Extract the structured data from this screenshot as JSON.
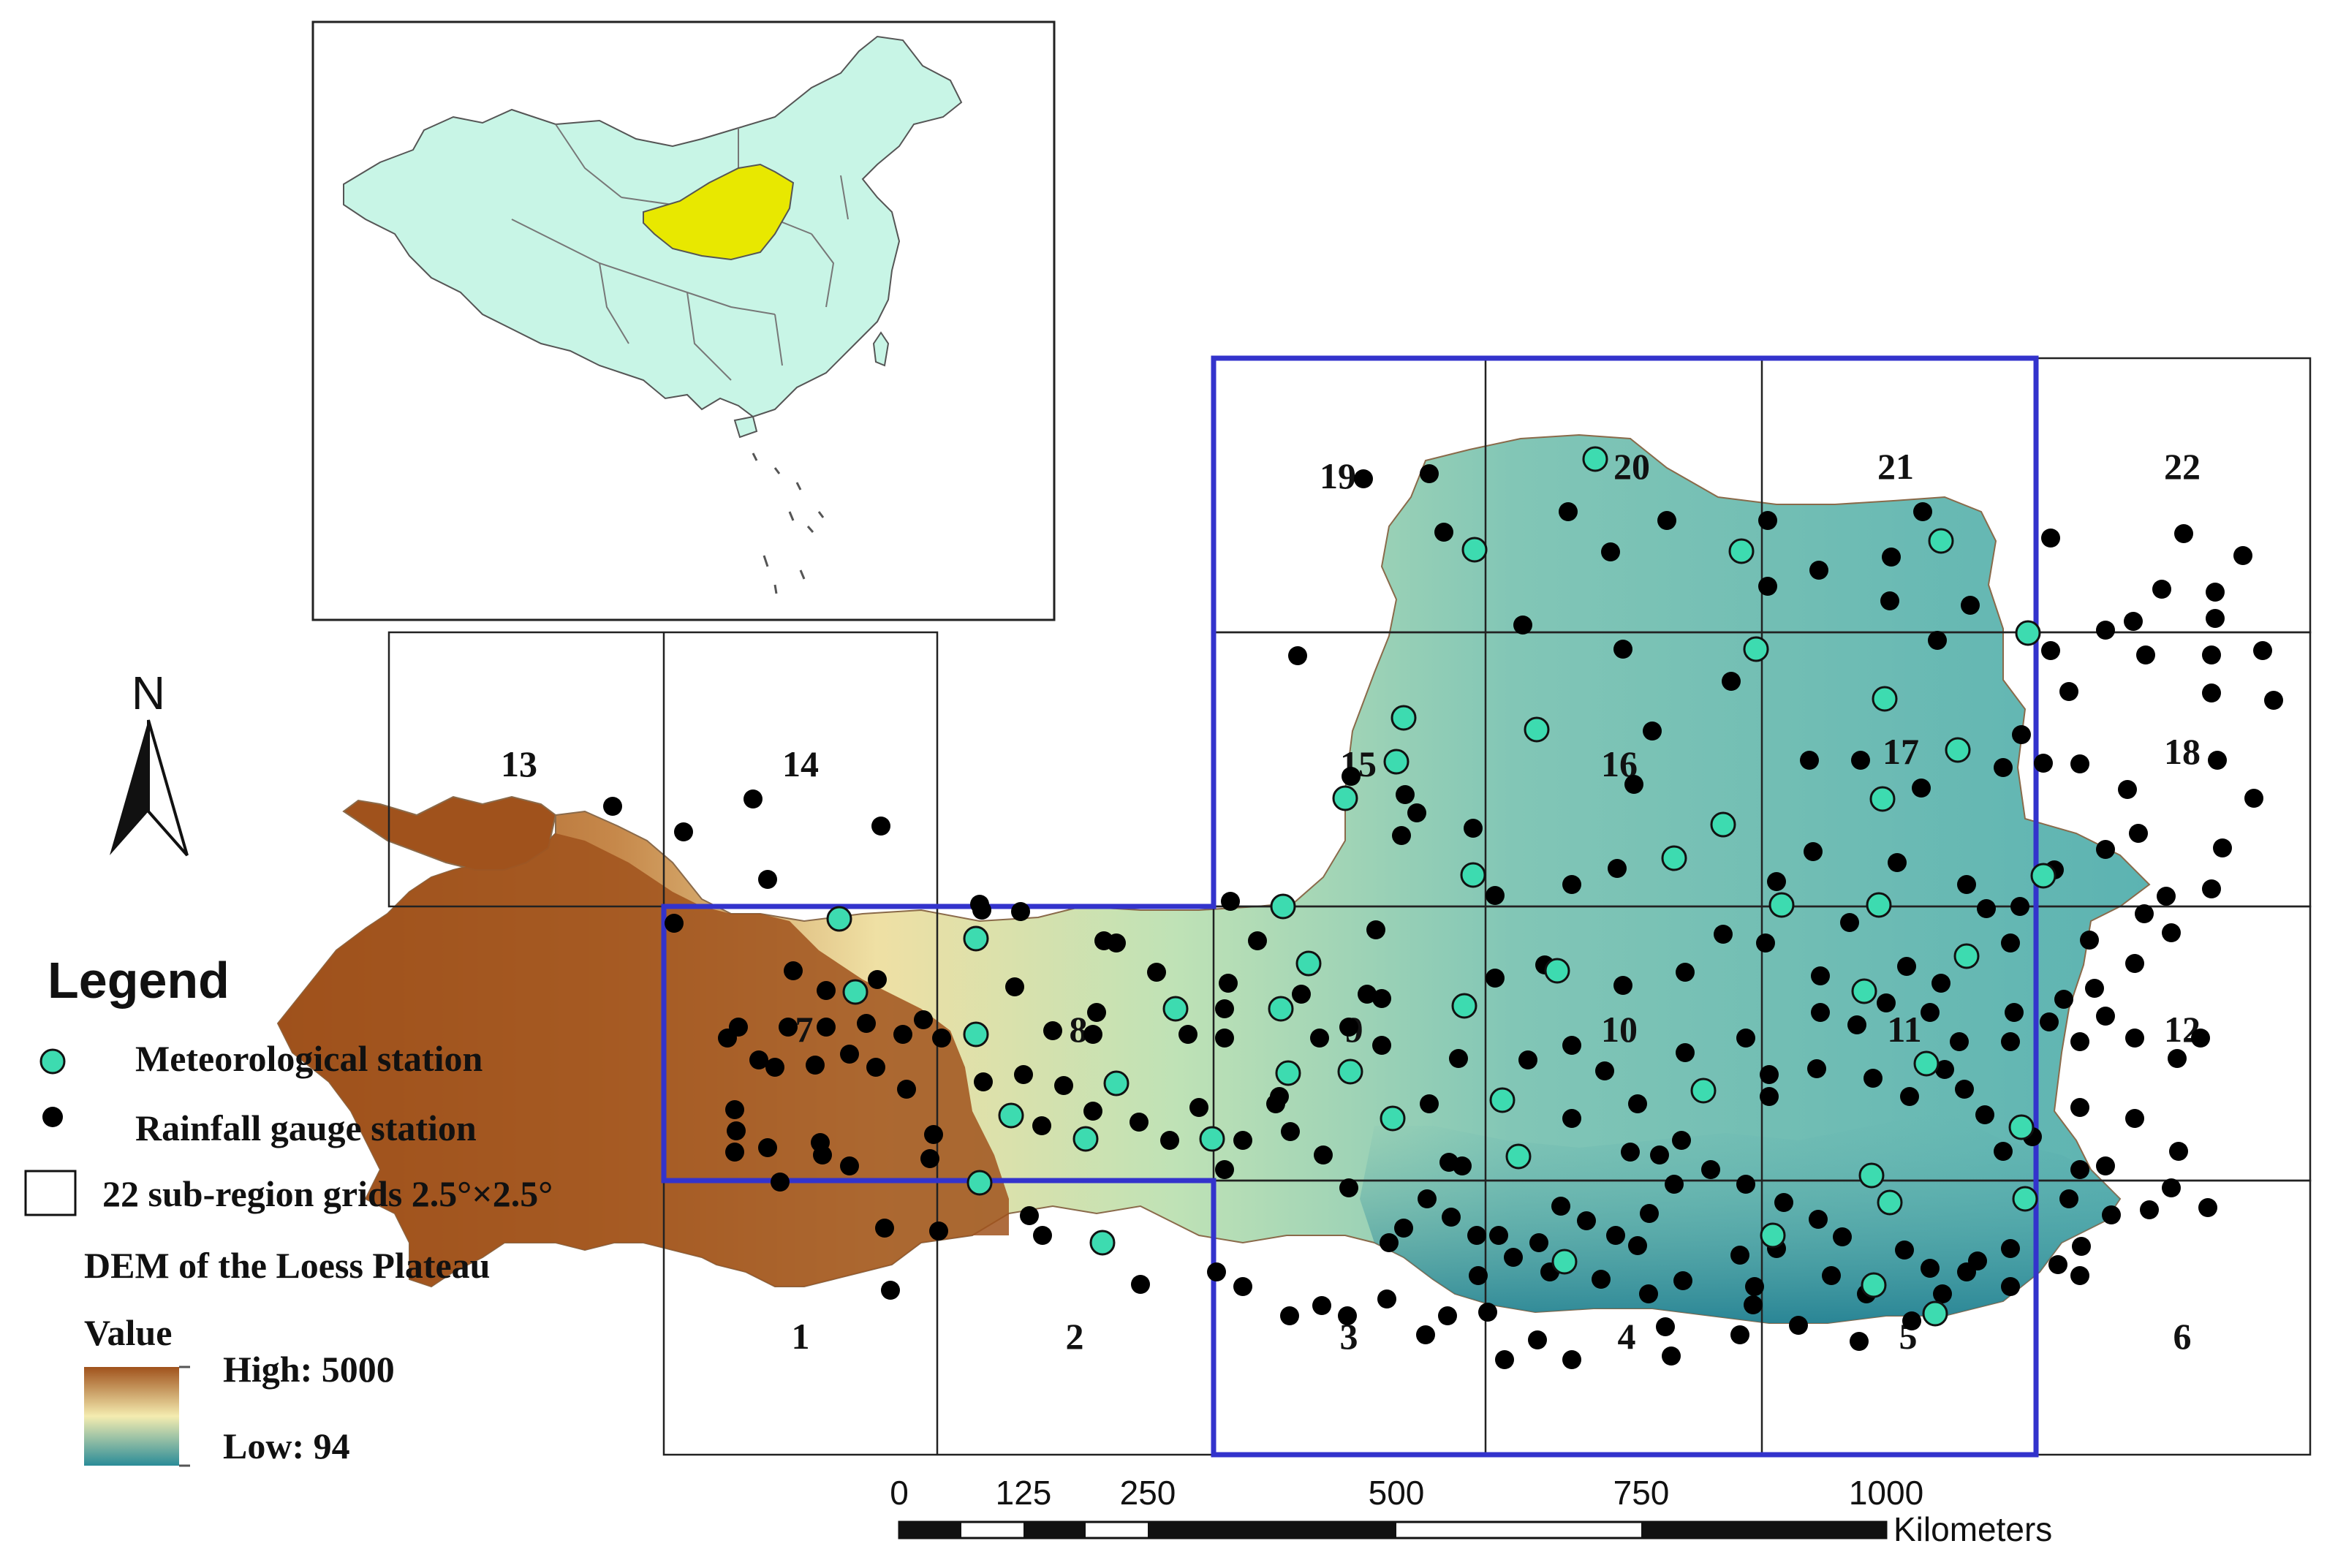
{
  "legend": {
    "title": "Legend",
    "meteorological": "Meteorological station",
    "rainfall": "Rainfall gauge station",
    "grids": "22 sub-region grids 2.5°×2.5°",
    "dem_title": "DEM of the Loess Plateau",
    "value_label": "Value",
    "high": "High: 5000",
    "low": "Low: 94"
  },
  "north_label": "N",
  "scale": {
    "ticks": [
      "0",
      "125",
      "250",
      "500",
      "750",
      "1000"
    ],
    "unit": "Kilometers"
  },
  "grid_labels": [
    "1",
    "2",
    "3",
    "4",
    "5",
    "6",
    "7",
    "8",
    "9",
    "10",
    "11",
    "12",
    "13",
    "14",
    "15",
    "16",
    "17",
    "18",
    "19",
    "20",
    "21",
    "22"
  ],
  "colors": {
    "meteorological_fill": "#3ddbb0",
    "rainfall_fill": "#000000",
    "study_area_border": "#3333cc",
    "inset_highlight": "#e8e800",
    "inset_land": "#c8f5e6",
    "dem_high": "#a0521c",
    "dem_mid": "#f4ecb0",
    "dem_low": "#2a8c98"
  }
}
